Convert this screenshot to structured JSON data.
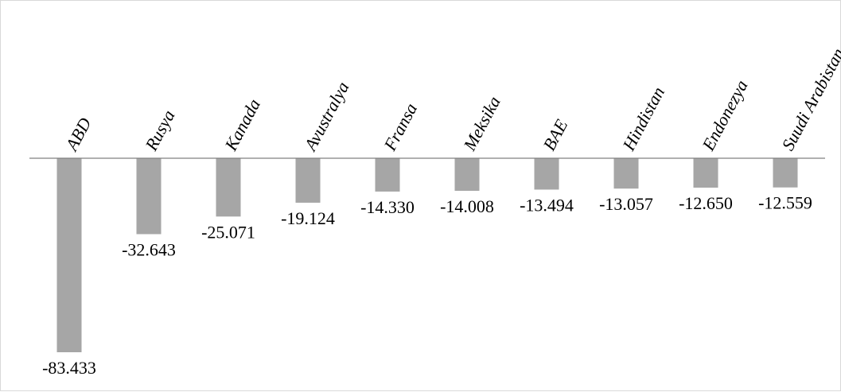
{
  "chart_data": {
    "type": "bar",
    "title": "",
    "xlabel": "",
    "ylabel": "",
    "categories": [
      "ABD",
      "Rusya",
      "Kanada",
      "Avustralya",
      "Fransa",
      "Meksika",
      "BAE",
      "Hindistan",
      "Endonezya",
      "Suudi Arabistan"
    ],
    "values": [
      -83.433,
      -32.643,
      -25.071,
      -19.124,
      -14.33,
      -14.008,
      -13.494,
      -13.057,
      -12.65,
      -12.559
    ],
    "value_labels": [
      "-83.433",
      "-32.643",
      "-25.071",
      "-19.124",
      "-14.330",
      "-14.008",
      "-13.494",
      "-13.057",
      "-12.650",
      "-12.559"
    ],
    "ylim": [
      -83.433,
      0
    ],
    "grid": false,
    "legend": "none",
    "bar_color": "#a6a6a6",
    "axis_color": "#808080"
  }
}
